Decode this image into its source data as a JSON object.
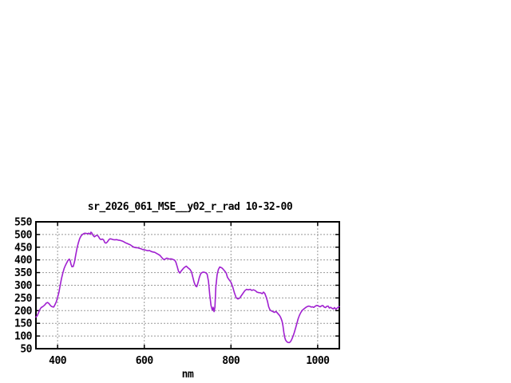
{
  "page": {
    "background": "#ffffff"
  },
  "chart_data": {
    "type": "line",
    "title": "sr_2026_061_MSE__y02_r_rad 10-32-00",
    "xlabel": "nm",
    "ylabel": "",
    "xlim": [
      350,
      1050
    ],
    "ylim": [
      50,
      550
    ],
    "xticks": [
      400,
      600,
      800,
      1000
    ],
    "yticks": [
      50,
      100,
      150,
      200,
      250,
      300,
      350,
      400,
      450,
      500,
      550
    ],
    "grid": true,
    "legend_position": "none",
    "line_color": "#a020d0",
    "grid_color": "#999999",
    "border_color": "#000000",
    "series": [
      {
        "name": "sr_2026_061_MSE__y02_r_rad",
        "points": [
          [
            350,
            175
          ],
          [
            353,
            180
          ],
          [
            356,
            192
          ],
          [
            359,
            204
          ],
          [
            362,
            212
          ],
          [
            366,
            216
          ],
          [
            370,
            222
          ],
          [
            374,
            230
          ],
          [
            377,
            232
          ],
          [
            380,
            228
          ],
          [
            384,
            219
          ],
          [
            388,
            215
          ],
          [
            391,
            214
          ],
          [
            394,
            224
          ],
          [
            397,
            235
          ],
          [
            400,
            252
          ],
          [
            403,
            272
          ],
          [
            406,
            300
          ],
          [
            409,
            326
          ],
          [
            412,
            348
          ],
          [
            415,
            366
          ],
          [
            418,
            378
          ],
          [
            421,
            388
          ],
          [
            424,
            398
          ],
          [
            427,
            403
          ],
          [
            429,
            397
          ],
          [
            431,
            382
          ],
          [
            433,
            373
          ],
          [
            436,
            374
          ],
          [
            439,
            392
          ],
          [
            442,
            420
          ],
          [
            445,
            448
          ],
          [
            448,
            468
          ],
          [
            451,
            484
          ],
          [
            454,
            494
          ],
          [
            457,
            500
          ],
          [
            460,
            503
          ],
          [
            463,
            505
          ],
          [
            466,
            504
          ],
          [
            469,
            503
          ],
          [
            472,
            505
          ],
          [
            475,
            501
          ],
          [
            477,
            509
          ],
          [
            479,
            506
          ],
          [
            482,
            496
          ],
          [
            485,
            491
          ],
          [
            488,
            495
          ],
          [
            491,
            497
          ],
          [
            494,
            493
          ],
          [
            497,
            484
          ],
          [
            500,
            480
          ],
          [
            503,
            482
          ],
          [
            506,
            479
          ],
          [
            509,
            468
          ],
          [
            512,
            466
          ],
          [
            515,
            471
          ],
          [
            518,
            479
          ],
          [
            521,
            483
          ],
          [
            524,
            482
          ],
          [
            528,
            480
          ],
          [
            532,
            479
          ],
          [
            536,
            480
          ],
          [
            540,
            478
          ],
          [
            544,
            477
          ],
          [
            548,
            475
          ],
          [
            552,
            472
          ],
          [
            556,
            468
          ],
          [
            560,
            465
          ],
          [
            564,
            462
          ],
          [
            568,
            459
          ],
          [
            572,
            454
          ],
          [
            576,
            450
          ],
          [
            580,
            448
          ],
          [
            584,
            448
          ],
          [
            588,
            446
          ],
          [
            592,
            444
          ],
          [
            596,
            441
          ],
          [
            600,
            440
          ],
          [
            604,
            438
          ],
          [
            608,
            436
          ],
          [
            612,
            437
          ],
          [
            616,
            433
          ],
          [
            620,
            431
          ],
          [
            624,
            430
          ],
          [
            628,
            426
          ],
          [
            632,
            422
          ],
          [
            636,
            418
          ],
          [
            640,
            410
          ],
          [
            643,
            404
          ],
          [
            646,
            401
          ],
          [
            649,
            404
          ],
          [
            652,
            407
          ],
          [
            655,
            405
          ],
          [
            658,
            403
          ],
          [
            661,
            404
          ],
          [
            664,
            403
          ],
          [
            667,
            401
          ],
          [
            670,
            399
          ],
          [
            673,
            391
          ],
          [
            676,
            373
          ],
          [
            679,
            355
          ],
          [
            682,
            348
          ],
          [
            685,
            356
          ],
          [
            688,
            362
          ],
          [
            691,
            368
          ],
          [
            694,
            372
          ],
          [
            697,
            375
          ],
          [
            700,
            370
          ],
          [
            703,
            366
          ],
          [
            706,
            361
          ],
          [
            709,
            352
          ],
          [
            712,
            332
          ],
          [
            715,
            312
          ],
          [
            718,
            298
          ],
          [
            721,
            294
          ],
          [
            724,
            310
          ],
          [
            727,
            331
          ],
          [
            730,
            345
          ],
          [
            733,
            350
          ],
          [
            736,
            352
          ],
          [
            739,
            351
          ],
          [
            742,
            349
          ],
          [
            745,
            344
          ],
          [
            748,
            316
          ],
          [
            751,
            262
          ],
          [
            754,
            220
          ],
          [
            757,
            202
          ],
          [
            759,
            213
          ],
          [
            761,
            196
          ],
          [
            763,
            214
          ],
          [
            765,
            292
          ],
          [
            768,
            341
          ],
          [
            771,
            362
          ],
          [
            774,
            372
          ],
          [
            777,
            370
          ],
          [
            780,
            367
          ],
          [
            783,
            361
          ],
          [
            786,
            355
          ],
          [
            789,
            348
          ],
          [
            792,
            331
          ],
          [
            796,
            321
          ],
          [
            800,
            312
          ],
          [
            804,
            293
          ],
          [
            808,
            270
          ],
          [
            812,
            251
          ],
          [
            816,
            246
          ],
          [
            820,
            249
          ],
          [
            824,
            259
          ],
          [
            828,
            269
          ],
          [
            832,
            279
          ],
          [
            836,
            284
          ],
          [
            840,
            282
          ],
          [
            844,
            284
          ],
          [
            848,
            280
          ],
          [
            852,
            282
          ],
          [
            856,
            279
          ],
          [
            860,
            273
          ],
          [
            864,
            271
          ],
          [
            868,
            270
          ],
          [
            872,
            267
          ],
          [
            875,
            273
          ],
          [
            878,
            268
          ],
          [
            881,
            254
          ],
          [
            884,
            238
          ],
          [
            887,
            215
          ],
          [
            890,
            203
          ],
          [
            893,
            199
          ],
          [
            896,
            197
          ],
          [
            900,
            193
          ],
          [
            904,
            197
          ],
          [
            908,
            189
          ],
          [
            912,
            181
          ],
          [
            915,
            172
          ],
          [
            918,
            158
          ],
          [
            920,
            140
          ],
          [
            922,
            114
          ],
          [
            924,
            95
          ],
          [
            926,
            84
          ],
          [
            928,
            79
          ],
          [
            931,
            75
          ],
          [
            934,
            74
          ],
          [
            937,
            77
          ],
          [
            940,
            86
          ],
          [
            943,
            98
          ],
          [
            946,
            113
          ],
          [
            949,
            131
          ],
          [
            952,
            149
          ],
          [
            955,
            168
          ],
          [
            958,
            182
          ],
          [
            961,
            192
          ],
          [
            964,
            200
          ],
          [
            967,
            205
          ],
          [
            970,
            209
          ],
          [
            973,
            213
          ],
          [
            976,
            216
          ],
          [
            979,
            218
          ],
          [
            982,
            217
          ],
          [
            985,
            214
          ],
          [
            988,
            215
          ],
          [
            991,
            213
          ],
          [
            994,
            217
          ],
          [
            997,
            220
          ],
          [
            1000,
            220
          ],
          [
            1003,
            217
          ],
          [
            1006,
            215
          ],
          [
            1009,
            219
          ],
          [
            1012,
            220
          ],
          [
            1015,
            214
          ],
          [
            1018,
            212
          ],
          [
            1021,
            217
          ],
          [
            1024,
            218
          ],
          [
            1027,
            210
          ],
          [
            1030,
            213
          ],
          [
            1033,
            209
          ],
          [
            1036,
            207
          ],
          [
            1039,
            212
          ],
          [
            1042,
            205
          ],
          [
            1045,
            210
          ],
          [
            1048,
            214
          ],
          [
            1050,
            216
          ]
        ]
      }
    ]
  }
}
